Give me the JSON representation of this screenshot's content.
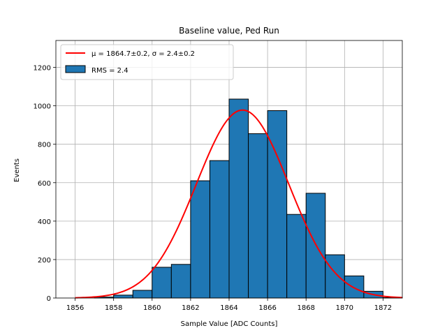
{
  "chart_data": {
    "type": "bar",
    "title": "Baseline value, Ped Run",
    "xlabel": "Sample Value [ADC Counts]",
    "ylabel": "Events",
    "xlim": [
      1855,
      1873
    ],
    "ylim": [
      0,
      1340
    ],
    "grid": true,
    "x_ticks": [
      1856,
      1858,
      1860,
      1862,
      1864,
      1866,
      1868,
      1870,
      1872
    ],
    "y_ticks": [
      0,
      200,
      400,
      600,
      800,
      1000,
      1200
    ],
    "histogram": {
      "name": "RMS = 2.4",
      "color": "#1f77b4",
      "edge_color": "#000000",
      "bins": [
        {
          "x0": 1857.0,
          "x1": 1858.0,
          "value": 5
        },
        {
          "x0": 1858.0,
          "x1": 1859.0,
          "value": 15
        },
        {
          "x0": 1859.0,
          "x1": 1860.0,
          "value": 40
        },
        {
          "x0": 1860.0,
          "x1": 1861.0,
          "value": 160
        },
        {
          "x0": 1861.0,
          "x1": 1862.0,
          "value": 175
        },
        {
          "x0": 1862.0,
          "x1": 1863.0,
          "value": 610
        },
        {
          "x0": 1863.0,
          "x1": 1864.0,
          "value": 715
        },
        {
          "x0": 1864.0,
          "x1": 1865.0,
          "value": 1035
        },
        {
          "x0": 1865.0,
          "x1": 1866.0,
          "value": 855
        },
        {
          "x0": 1866.0,
          "x1": 1867.0,
          "value": 975
        },
        {
          "x0": 1867.0,
          "x1": 1868.0,
          "value": 435
        },
        {
          "x0": 1868.0,
          "x1": 1869.0,
          "value": 545
        },
        {
          "x0": 1869.0,
          "x1": 1870.0,
          "value": 225
        },
        {
          "x0": 1870.0,
          "x1": 1871.0,
          "value": 115
        },
        {
          "x0": 1871.0,
          "x1": 1872.0,
          "value": 35
        },
        {
          "x0": 1872.0,
          "x1": 1873.0,
          "value": 2
        }
      ]
    },
    "fit": {
      "type": "gaussian",
      "name_mu": "μ = 1864.7±0.2, ",
      "name_sigma": "σ = 2.4±0.2",
      "mu": 1864.7,
      "sigma": 2.4,
      "amplitude": 978,
      "x_range": [
        1856,
        1873
      ],
      "color": "#ff0000"
    },
    "legend_position": "upper-left"
  }
}
